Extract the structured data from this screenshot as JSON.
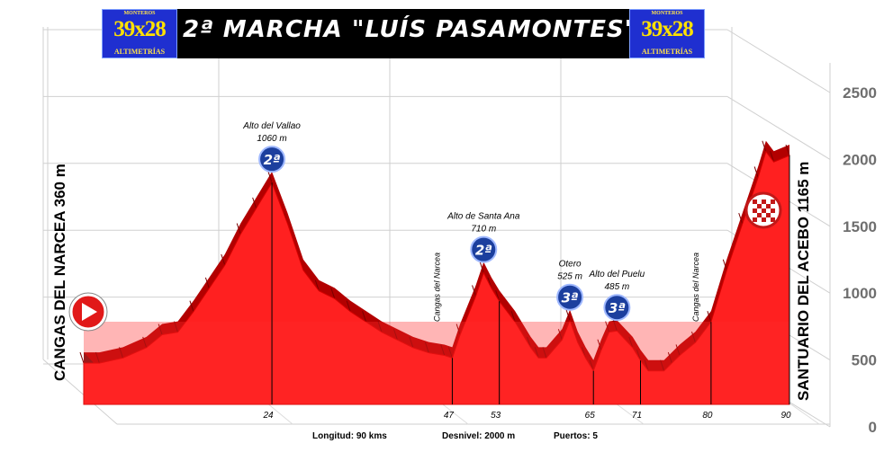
{
  "banner": {
    "title": "2ª MARCHA \"LUÍS PASAMONTES\"",
    "logo_top": "MONTEROS",
    "logo_main": "39x28",
    "logo_sub": "ALTIMETRÍAS"
  },
  "chart_data": {
    "type": "area",
    "title": "2ª MARCHA \"LUÍS PASAMONTES\"",
    "start_label": "CANGAS DEL NARCEA  360 m",
    "finish_label": "SANTUARIO DEL ACEBO 1165 m",
    "ylim": [
      0,
      2500
    ],
    "y_ticks": [
      0,
      500,
      1000,
      1500,
      2000,
      2500
    ],
    "xlim": [
      0,
      90
    ],
    "x_ticks": [
      24,
      47,
      53,
      65,
      71,
      80,
      90
    ],
    "grid": true,
    "profile": [
      [
        0,
        360
      ],
      [
        2,
        360
      ],
      [
        5,
        380
      ],
      [
        8,
        420
      ],
      [
        10,
        470
      ],
      [
        12,
        480
      ],
      [
        14,
        560
      ],
      [
        16,
        650
      ],
      [
        18,
        740
      ],
      [
        20,
        860
      ],
      [
        22,
        960
      ],
      [
        24,
        1060
      ],
      [
        26,
        900
      ],
      [
        28,
        720
      ],
      [
        30,
        640
      ],
      [
        32,
        610
      ],
      [
        34,
        560
      ],
      [
        36,
        520
      ],
      [
        38,
        480
      ],
      [
        40,
        450
      ],
      [
        42,
        420
      ],
      [
        44,
        400
      ],
      [
        46,
        390
      ],
      [
        47,
        380
      ],
      [
        48,
        470
      ],
      [
        50,
        620
      ],
      [
        51,
        710
      ],
      [
        52,
        650
      ],
      [
        53,
        600
      ],
      [
        55,
        520
      ],
      [
        57,
        420
      ],
      [
        58,
        380
      ],
      [
        59,
        380
      ],
      [
        61,
        450
      ],
      [
        62,
        525
      ],
      [
        63,
        440
      ],
      [
        64,
        380
      ],
      [
        65,
        330
      ],
      [
        66,
        410
      ],
      [
        67,
        480
      ],
      [
        68,
        485
      ],
      [
        70,
        420
      ],
      [
        71,
        370
      ],
      [
        72,
        330
      ],
      [
        74,
        330
      ],
      [
        75,
        360
      ],
      [
        76,
        390
      ],
      [
        78,
        440
      ],
      [
        80,
        520
      ],
      [
        82,
        720
      ],
      [
        84,
        900
      ],
      [
        86,
        1080
      ],
      [
        87,
        1180
      ],
      [
        88,
        1140
      ],
      [
        90,
        1165
      ]
    ],
    "climbs": [
      {
        "name": "Alto del Vallao",
        "elevation_label": "1060 m",
        "km": 24,
        "elevation": 1060,
        "category": "2ª"
      },
      {
        "name": "Alto de Santa Ana",
        "elevation_label": "710 m",
        "km": 51,
        "elevation": 710,
        "category": "2ª"
      },
      {
        "name": "Otero",
        "elevation_label": "525 m",
        "km": 62,
        "elevation": 525,
        "category": "3ª"
      },
      {
        "name": "Alto del Puelu",
        "elevation_label": "485 m",
        "km": 68,
        "elevation": 485,
        "category": "3ª"
      }
    ],
    "waypoints": [
      {
        "name": "Cangas del Narcea",
        "km": 47
      },
      {
        "name": "Cangas del Narcea",
        "km": 80
      }
    ]
  },
  "footer": {
    "distance": "Longitud: 90 kms",
    "elevation_gain": "Desnivel: 2000 m",
    "climbs_count": "Puertos: 5"
  },
  "colors": {
    "profile_side": "#ff2020",
    "profile_top": "#b20000",
    "profile_edge": "#d40000",
    "left_face": "#6a1010",
    "badge": "#1c3f9e",
    "start_flag": "#e11919"
  }
}
